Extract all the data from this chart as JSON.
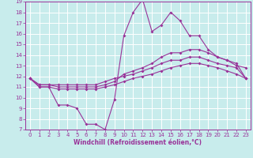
{
  "xlabel": "Windchill (Refroidissement éolien,°C)",
  "bg_color": "#c8ecec",
  "line_color": "#993399",
  "grid_color": "#ffffff",
  "xlim": [
    -0.5,
    23.5
  ],
  "ylim": [
    7,
    19
  ],
  "xticks": [
    0,
    1,
    2,
    3,
    4,
    5,
    6,
    7,
    8,
    9,
    10,
    11,
    12,
    13,
    14,
    15,
    16,
    17,
    18,
    19,
    20,
    21,
    22,
    23
  ],
  "yticks": [
    7,
    8,
    9,
    10,
    11,
    12,
    13,
    14,
    15,
    16,
    17,
    18,
    19
  ],
  "line1_y": [
    11.8,
    11.0,
    11.0,
    9.3,
    9.3,
    9.0,
    7.5,
    7.5,
    7.0,
    9.8,
    15.8,
    18.0,
    19.2,
    16.2,
    16.8,
    18.0,
    17.2,
    15.8,
    15.8,
    14.5,
    13.8,
    13.5,
    13.0,
    12.8
  ],
  "line2_y": [
    11.8,
    11.2,
    11.2,
    11.0,
    11.0,
    11.0,
    11.0,
    11.0,
    11.2,
    11.5,
    12.2,
    12.5,
    12.8,
    13.2,
    13.8,
    14.2,
    14.2,
    14.5,
    14.5,
    14.2,
    13.8,
    13.5,
    13.2,
    11.8
  ],
  "line3_y": [
    11.8,
    11.2,
    11.2,
    11.2,
    11.2,
    11.2,
    11.2,
    11.2,
    11.5,
    11.8,
    12.0,
    12.2,
    12.5,
    12.8,
    13.2,
    13.5,
    13.5,
    13.8,
    13.8,
    13.5,
    13.2,
    13.0,
    12.8,
    11.8
  ],
  "line4_y": [
    11.8,
    11.0,
    11.0,
    10.8,
    10.8,
    10.8,
    10.8,
    10.8,
    11.0,
    11.2,
    11.5,
    11.8,
    12.0,
    12.2,
    12.5,
    12.8,
    13.0,
    13.2,
    13.2,
    13.0,
    12.8,
    12.5,
    12.2,
    11.8
  ]
}
